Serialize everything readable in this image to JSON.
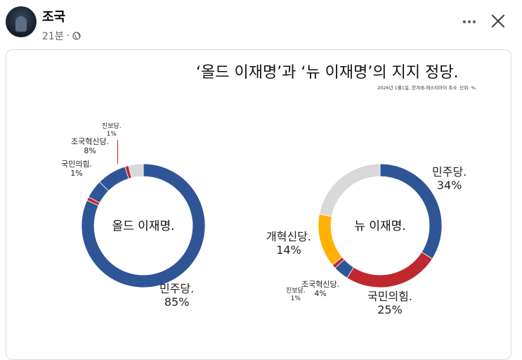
{
  "post": {
    "author": "조국",
    "time": "21분",
    "separator": "·",
    "icons": {
      "privacy": "globe-icon",
      "more": "more-dots-icon",
      "close": "close-icon"
    }
  },
  "infographic": {
    "title": "‘올드 이재명’과 ‘뉴 이재명’의 지지 정당.",
    "subtitle": "2026년 1월1일, 한겨레-에스티아이 조사. 단위: %."
  },
  "chart_data": [
    {
      "type": "pie",
      "center_label": "올드 이재명.",
      "slices": [
        {
          "name": "민주당.",
          "value": 85,
          "label": "85%",
          "color": "#2f5597"
        },
        {
          "name": "국민의힘.",
          "value": 1,
          "label": "1%",
          "color": "#c0282f"
        },
        {
          "name": "",
          "value": 5,
          "label": "",
          "color": "#2f5597"
        },
        {
          "name": "조국혁신당.",
          "value": 8,
          "label": "8%",
          "color": "#2f5597"
        },
        {
          "name": "진보당.",
          "value": 1,
          "label": "1%",
          "color": "#c0282f"
        },
        {
          "name": "",
          "value": 4,
          "label": "",
          "color": "#d9d9d9"
        }
      ]
    },
    {
      "type": "pie",
      "center_label": "뉴 이재명.",
      "slices": [
        {
          "name": "민주당.",
          "value": 34,
          "label": "34%",
          "color": "#2f5597"
        },
        {
          "name": "국민의힘.",
          "value": 25,
          "label": "25%",
          "color": "#c0282f"
        },
        {
          "name": "조국혁신당.",
          "value": 4,
          "label": "4%",
          "color": "#2f5597"
        },
        {
          "name": "진보당.",
          "value": 1,
          "label": "1%",
          "color": "#c0282f"
        },
        {
          "name": "개혁신당.",
          "value": 14,
          "label": "14%",
          "color": "#ffb000"
        },
        {
          "name": "",
          "value": 22,
          "label": "",
          "color": "#d9d9d9"
        }
      ]
    }
  ]
}
